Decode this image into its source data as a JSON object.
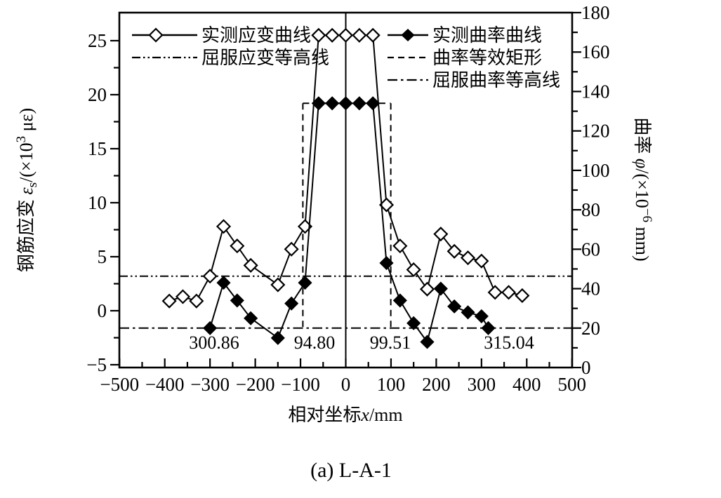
{
  "caption": "(a) L-A-1",
  "colors": {
    "line": "#000000",
    "background": "#ffffff"
  },
  "legend": {
    "left": [
      {
        "label": "实测应变曲线",
        "marker": "open-diamond",
        "line": "solid"
      },
      {
        "label": "屈服应变等高线",
        "marker": "none",
        "line": "dash-dot-dot"
      }
    ],
    "right": [
      {
        "label": "实测曲率曲线",
        "marker": "filled-diamond",
        "line": "solid"
      },
      {
        "label": "曲率等效矩形",
        "marker": "none",
        "line": "dashed"
      },
      {
        "label": "屈服曲率等高线",
        "marker": "none",
        "line": "dash-dot"
      }
    ]
  },
  "axes": {
    "x_title": {
      "prefix": "相对坐标",
      "symbol": "x",
      "suffix": "/mm"
    },
    "y_left": {
      "prefix": "钢筋应变 ",
      "symbol": "ε",
      "subscript": "s",
      "mid": "/(×10",
      "superscript": "3",
      "suffix": " με)"
    },
    "y_right": {
      "prefix": "曲率 ",
      "symbol": "φ",
      "mid": "/(×10",
      "superscript": "−6",
      "suffix": " mm)"
    }
  },
  "chart_data": {
    "type": "line",
    "title": "",
    "xlabel": "相对坐标x/mm",
    "ylabel_left": "钢筋应变 εs/(×10³ με)",
    "ylabel_right": "曲率 φ/(×10⁻⁶ mm)",
    "grid": false,
    "axes": {
      "x": {
        "min": -500,
        "max": 500,
        "major_ticks": [
          -500,
          -400,
          -300,
          -200,
          -100,
          0,
          100,
          200,
          300,
          400,
          500
        ],
        "minor_ticks": [
          -450,
          -350,
          -250,
          -150,
          -50,
          50,
          150,
          250,
          350,
          450
        ]
      },
      "left": {
        "min": -5,
        "max": 27.6,
        "major_ticks": [
          -5,
          0,
          5,
          10,
          15,
          20,
          25
        ],
        "minor_ticks": [
          -2.5,
          2.5,
          7.5,
          12.5,
          17.5,
          22.5
        ]
      },
      "right": {
        "min": 0,
        "max": 180,
        "major_ticks": [
          0,
          20,
          40,
          60,
          80,
          100,
          120,
          140,
          160,
          180
        ],
        "minor_ticks": [
          10,
          30,
          50,
          70,
          90,
          110,
          130,
          150,
          170
        ]
      }
    },
    "series": [
      {
        "name": "实测应变曲线",
        "axis": "left",
        "marker": "open-diamond",
        "x": [
          -390,
          -360,
          -330,
          -300,
          -270,
          -240,
          -210,
          -150,
          -120,
          -90,
          -60,
          -30,
          0,
          30,
          60,
          90,
          120,
          150,
          180,
          210,
          240,
          270,
          300,
          330,
          360,
          390
        ],
        "y": [
          0.9,
          1.3,
          0.9,
          3.2,
          7.8,
          6.0,
          4.2,
          2.4,
          5.7,
          7.8,
          25.5,
          25.5,
          25.5,
          25.5,
          25.5,
          9.8,
          6.0,
          3.8,
          2.0,
          7.1,
          5.5,
          4.9,
          4.6,
          1.7,
          1.7,
          1.4
        ]
      },
      {
        "name": "实测曲率曲线",
        "axis": "right",
        "marker": "filled-diamond",
        "x": [
          -300,
          -270,
          -240,
          -210,
          -150,
          -120,
          -90,
          -60,
          -30,
          0,
          30,
          60,
          90,
          120,
          150,
          180,
          210,
          240,
          270,
          300,
          315
        ],
        "y": [
          20,
          43,
          34,
          25,
          15,
          32.5,
          43,
          134,
          134,
          134,
          134,
          134,
          53,
          34,
          22.5,
          13,
          40,
          31,
          28,
          26,
          20
        ]
      }
    ],
    "reference_lines": {
      "yield_strain_contour": {
        "value": 3.2,
        "axis": "left",
        "style": "dash-dot-dot"
      },
      "yield_curvature_contour": {
        "value": 20,
        "axis": "right",
        "style": "dash-dot"
      },
      "center_axis_x": 0
    },
    "equivalent_rectangle": {
      "x_left": -94.8,
      "x_right": 99.51,
      "top_curvature": 134,
      "style": "dashed"
    },
    "annotations": [
      {
        "text": "300.86",
        "x": -291
      },
      {
        "text": "94.80",
        "x": -69
      },
      {
        "text": "99.51",
        "x": 98.5
      },
      {
        "text": "315.04",
        "x": 360.7
      }
    ]
  }
}
